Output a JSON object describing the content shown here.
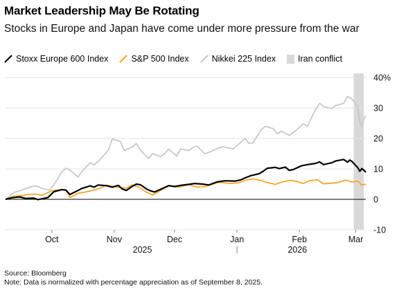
{
  "title": "Market Leadership May Be Rotating",
  "subtitle": "Stocks in Europe and Japan have come under more pressure from the war",
  "legend": [
    {
      "label": "Stoxx Europe 600 Index",
      "color": "#000000",
      "kind": "line"
    },
    {
      "label": "S&P 500 Index",
      "color": "#f5a623",
      "kind": "line"
    },
    {
      "label": "Nikkei 225 Index",
      "color": "#c8c8c8",
      "kind": "line"
    },
    {
      "label": "Iran conflict",
      "color": "#d9d9d9",
      "kind": "box"
    }
  ],
  "footer": {
    "source": "Source: Bloomberg",
    "note": "Note: Data is normalized with percentage appreciation as of September 8, 2025."
  },
  "chart_data": {
    "type": "line",
    "x_start": "2025-09-08",
    "x_end": "2026-03-06",
    "ylim": [
      -10,
      40
    ],
    "yticks": [
      -10,
      0,
      10,
      20,
      30,
      40
    ],
    "ytick_labels": [
      "-10",
      "0",
      "10",
      "20",
      "30",
      "40%"
    ],
    "xticks": [
      {
        "date": "2025-10-01",
        "label": "Oct"
      },
      {
        "date": "2025-11-01",
        "label": "Nov"
      },
      {
        "date": "2025-12-01",
        "label": "Dec"
      },
      {
        "date": "2026-01-01",
        "label": "Jan"
      },
      {
        "date": "2026-02-01",
        "label": "Feb"
      },
      {
        "date": "2026-03-01",
        "label": "Mar"
      }
    ],
    "year_labels": [
      {
        "date": "2025-11-15",
        "label": "2025"
      },
      {
        "date": "2026-01-31",
        "label": "2026"
      }
    ],
    "year_divider": "2026-01-01",
    "grid": true,
    "legend_position": "top",
    "shaded_region": {
      "label": "Iran conflict",
      "start": "2026-02-28",
      "end": "2026-03-05",
      "color": "#d9d9d9"
    },
    "series": [
      {
        "name": "Stoxx Europe 600 Index",
        "color": "#000000",
        "points": [
          [
            "2025-09-08",
            0
          ],
          [
            "2025-09-11",
            0.5
          ],
          [
            "2025-09-15",
            0.8
          ],
          [
            "2025-09-18",
            0.3
          ],
          [
            "2025-09-22",
            0.4
          ],
          [
            "2025-09-24",
            -0.1
          ],
          [
            "2025-09-29",
            0.6
          ],
          [
            "2025-10-02",
            2.5
          ],
          [
            "2025-10-06",
            3.2
          ],
          [
            "2025-10-08",
            3.0
          ],
          [
            "2025-10-10",
            1.6
          ],
          [
            "2025-10-13",
            2.6
          ],
          [
            "2025-10-16",
            3.6
          ],
          [
            "2025-10-20",
            4.4
          ],
          [
            "2025-10-22",
            4.0
          ],
          [
            "2025-10-24",
            4.7
          ],
          [
            "2025-10-28",
            4.5
          ],
          [
            "2025-10-31",
            4.0
          ],
          [
            "2025-11-03",
            4.6
          ],
          [
            "2025-11-05",
            3.4
          ],
          [
            "2025-11-07",
            2.9
          ],
          [
            "2025-11-10",
            4.3
          ],
          [
            "2025-11-12",
            5.0
          ],
          [
            "2025-11-14",
            4.8
          ],
          [
            "2025-11-17",
            3.4
          ],
          [
            "2025-11-19",
            2.8
          ],
          [
            "2025-11-21",
            2.4
          ],
          [
            "2025-11-25",
            3.6
          ],
          [
            "2025-11-28",
            4.5
          ],
          [
            "2025-12-01",
            4.2
          ],
          [
            "2025-12-04",
            4.6
          ],
          [
            "2025-12-08",
            4.9
          ],
          [
            "2025-12-11",
            5.2
          ],
          [
            "2025-12-15",
            5.0
          ],
          [
            "2025-12-18",
            4.7
          ],
          [
            "2025-12-22",
            5.7
          ],
          [
            "2025-12-26",
            6.1
          ],
          [
            "2025-12-31",
            6.0
          ],
          [
            "2026-01-03",
            6.4
          ],
          [
            "2026-01-06",
            7.3
          ],
          [
            "2026-01-08",
            7.8
          ],
          [
            "2026-01-12",
            8.4
          ],
          [
            "2026-01-14",
            9.2
          ],
          [
            "2026-01-16",
            10.2
          ],
          [
            "2026-01-20",
            10.5
          ],
          [
            "2026-01-22",
            10.1
          ],
          [
            "2026-01-25",
            10.6
          ],
          [
            "2026-01-27",
            9.5
          ],
          [
            "2026-01-29",
            9.8
          ],
          [
            "2026-02-02",
            11.0
          ],
          [
            "2026-02-05",
            11.4
          ],
          [
            "2026-02-09",
            11.8
          ],
          [
            "2026-02-11",
            12.3
          ],
          [
            "2026-02-13",
            11.4
          ],
          [
            "2026-02-17",
            12.0
          ],
          [
            "2026-02-19",
            12.6
          ],
          [
            "2026-02-23",
            13.1
          ],
          [
            "2026-02-25",
            12.2
          ],
          [
            "2026-02-26",
            12.9
          ],
          [
            "2026-02-27",
            12.5
          ],
          [
            "2026-03-02",
            10.4
          ],
          [
            "2026-03-03",
            9.2
          ],
          [
            "2026-03-04",
            10.1
          ],
          [
            "2026-03-05",
            9.6
          ],
          [
            "2026-03-06",
            8.9
          ]
        ]
      },
      {
        "name": "S&P 500 Index",
        "color": "#f5a623",
        "points": [
          [
            "2025-09-08",
            0
          ],
          [
            "2025-09-12",
            1.0
          ],
          [
            "2025-09-16",
            1.2
          ],
          [
            "2025-09-19",
            1.6
          ],
          [
            "2025-09-23",
            1.7
          ],
          [
            "2025-09-26",
            1.3
          ],
          [
            "2025-10-01",
            2.8
          ],
          [
            "2025-10-03",
            3.0
          ],
          [
            "2025-10-06",
            3.1
          ],
          [
            "2025-10-08",
            3.2
          ],
          [
            "2025-10-10",
            0.6
          ],
          [
            "2025-10-14",
            2.0
          ],
          [
            "2025-10-17",
            2.3
          ],
          [
            "2025-10-21",
            2.9
          ],
          [
            "2025-10-24",
            3.4
          ],
          [
            "2025-10-28",
            4.6
          ],
          [
            "2025-10-31",
            4.3
          ],
          [
            "2025-11-04",
            3.8
          ],
          [
            "2025-11-07",
            3.7
          ],
          [
            "2025-11-10",
            4.7
          ],
          [
            "2025-11-13",
            4.0
          ],
          [
            "2025-11-17",
            2.4
          ],
          [
            "2025-11-20",
            1.4
          ],
          [
            "2025-11-24",
            2.9
          ],
          [
            "2025-11-28",
            4.4
          ],
          [
            "2025-12-03",
            4.0
          ],
          [
            "2025-12-08",
            4.8
          ],
          [
            "2025-12-12",
            4.0
          ],
          [
            "2025-12-16",
            4.2
          ],
          [
            "2025-12-19",
            4.8
          ],
          [
            "2025-12-23",
            5.6
          ],
          [
            "2025-12-29",
            5.2
          ],
          [
            "2026-01-02",
            5.5
          ],
          [
            "2026-01-06",
            6.4
          ],
          [
            "2026-01-09",
            6.7
          ],
          [
            "2026-01-13",
            6.2
          ],
          [
            "2026-01-16",
            5.5
          ],
          [
            "2026-01-20",
            4.9
          ],
          [
            "2026-01-23",
            5.6
          ],
          [
            "2026-01-27",
            6.2
          ],
          [
            "2026-01-30",
            6.0
          ],
          [
            "2026-02-03",
            5.2
          ],
          [
            "2026-02-06",
            6.1
          ],
          [
            "2026-02-10",
            6.4
          ],
          [
            "2026-02-13",
            5.1
          ],
          [
            "2026-02-17",
            5.3
          ],
          [
            "2026-02-20",
            5.5
          ],
          [
            "2026-02-24",
            6.3
          ],
          [
            "2026-02-27",
            5.7
          ],
          [
            "2026-03-02",
            6.0
          ],
          [
            "2026-03-04",
            4.7
          ],
          [
            "2026-03-06",
            5.0
          ]
        ]
      },
      {
        "name": "Nikkei 225 Index",
        "color": "#c8c8c8",
        "points": [
          [
            "2025-09-08",
            0
          ],
          [
            "2025-09-10",
            1.0
          ],
          [
            "2025-09-12",
            2.2
          ],
          [
            "2025-09-16",
            3.0
          ],
          [
            "2025-09-18",
            3.5
          ],
          [
            "2025-09-22",
            4.4
          ],
          [
            "2025-09-24",
            4.2
          ],
          [
            "2025-09-26",
            3.6
          ],
          [
            "2025-09-30",
            3.0
          ],
          [
            "2025-10-02",
            4.8
          ],
          [
            "2025-10-06",
            9.0
          ],
          [
            "2025-10-08",
            10.2
          ],
          [
            "2025-10-10",
            9.6
          ],
          [
            "2025-10-14",
            7.3
          ],
          [
            "2025-10-16",
            9.2
          ],
          [
            "2025-10-20",
            12.0
          ],
          [
            "2025-10-22",
            11.3
          ],
          [
            "2025-10-24",
            12.4
          ],
          [
            "2025-10-27",
            14.6
          ],
          [
            "2025-10-29",
            16.1
          ],
          [
            "2025-10-31",
            19.8
          ],
          [
            "2025-11-04",
            19.0
          ],
          [
            "2025-11-06",
            16.0
          ],
          [
            "2025-11-10",
            17.2
          ],
          [
            "2025-11-12",
            18.3
          ],
          [
            "2025-11-14",
            16.2
          ],
          [
            "2025-11-18",
            13.4
          ],
          [
            "2025-11-20",
            15.0
          ],
          [
            "2025-11-24",
            14.0
          ],
          [
            "2025-11-26",
            15.0
          ],
          [
            "2025-11-28",
            16.5
          ],
          [
            "2025-12-02",
            14.2
          ],
          [
            "2025-12-04",
            16.5
          ],
          [
            "2025-12-08",
            16.0
          ],
          [
            "2025-12-10",
            17.0
          ],
          [
            "2025-12-12",
            17.5
          ],
          [
            "2025-12-16",
            15.0
          ],
          [
            "2025-12-18",
            15.4
          ],
          [
            "2025-12-22",
            16.6
          ],
          [
            "2025-12-25",
            17.3
          ],
          [
            "2025-12-30",
            16.5
          ],
          [
            "2026-01-05",
            20.0
          ],
          [
            "2026-01-07",
            18.3
          ],
          [
            "2026-01-09",
            18.6
          ],
          [
            "2026-01-13",
            22.8
          ],
          [
            "2026-01-15",
            24.0
          ],
          [
            "2026-01-19",
            23.2
          ],
          [
            "2026-01-21",
            21.5
          ],
          [
            "2026-01-23",
            22.4
          ],
          [
            "2026-01-27",
            21.0
          ],
          [
            "2026-01-30",
            22.5
          ],
          [
            "2026-02-03",
            24.8
          ],
          [
            "2026-02-05",
            24.0
          ],
          [
            "2026-02-09",
            29.5
          ],
          [
            "2026-02-11",
            31.5
          ],
          [
            "2026-02-13",
            30.5
          ],
          [
            "2026-02-17",
            29.8
          ],
          [
            "2026-02-19",
            30.8
          ],
          [
            "2026-02-23",
            31.5
          ],
          [
            "2026-02-25",
            33.8
          ],
          [
            "2026-02-27",
            33.0
          ],
          [
            "2026-03-02",
            30.5
          ],
          [
            "2026-03-03",
            25.5
          ],
          [
            "2026-03-04",
            24.0
          ],
          [
            "2026-03-05",
            26.5
          ],
          [
            "2026-03-06",
            27.4
          ]
        ]
      }
    ]
  }
}
